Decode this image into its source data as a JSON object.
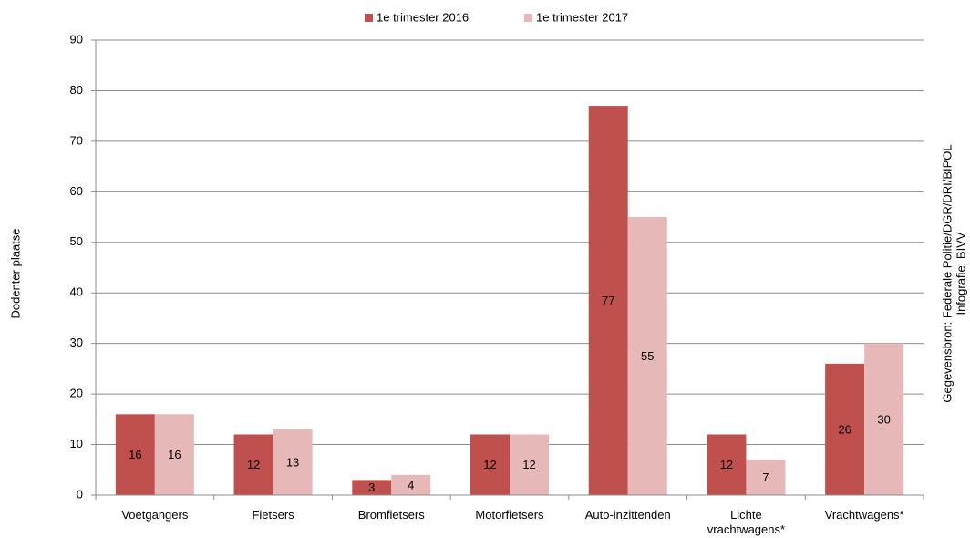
{
  "chart_data": {
    "type": "bar",
    "y_label": "Dodenter plaatse",
    "source": "Gegevensbron: Federale Politie/DGR/DRI/BIPOL",
    "credit": "Infografie: BIVV",
    "categories": [
      "Voetgangers",
      "Fietsers",
      "Bromfietsers",
      "Motorfietsers",
      "Auto-inzittenden",
      "Lichte vrachtwagens*",
      "Vrachtwagens*"
    ],
    "series": [
      {
        "name": "1e trimester 2016",
        "color": "#c0504d",
        "values": [
          16,
          12,
          3,
          12,
          77,
          12,
          26
        ]
      },
      {
        "name": "1e trimester 2017",
        "color": "#e6b9b8",
        "values": [
          16,
          13,
          4,
          12,
          55,
          7,
          30
        ]
      }
    ],
    "ylim": [
      0,
      90
    ],
    "yticks": [
      0,
      10,
      20,
      30,
      40,
      50,
      60,
      70,
      80,
      90
    ],
    "grid": true,
    "legend": "top"
  }
}
